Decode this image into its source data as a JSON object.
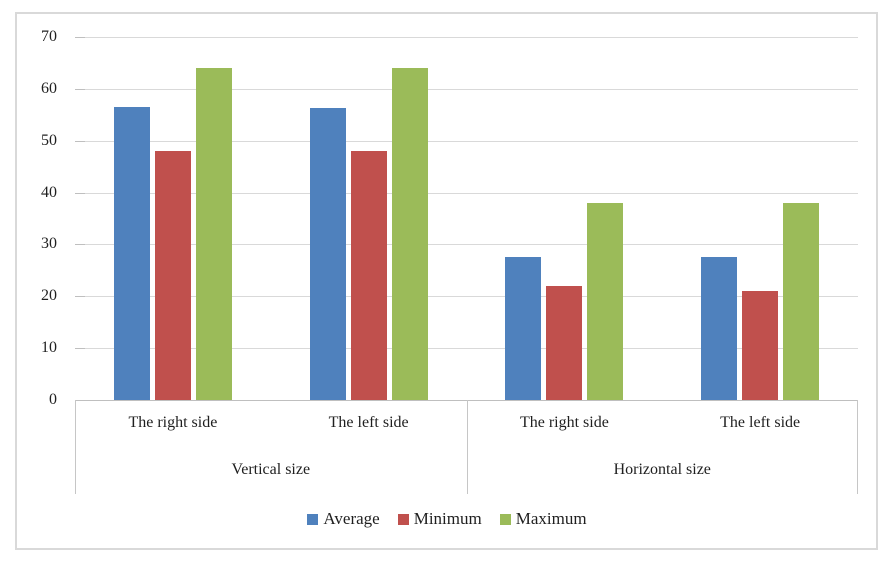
{
  "chart_data": {
    "type": "bar",
    "title": "",
    "categories": [
      "The right side",
      "The left side",
      "The right side",
      "The left side"
    ],
    "category_groups": [
      {
        "label": "Vertical size",
        "span": 2
      },
      {
        "label": "Horizontal size",
        "span": 2
      }
    ],
    "series": [
      {
        "name": "Average",
        "color": "#4F81BD",
        "values": [
          56.5,
          56.3,
          27.5,
          27.5
        ]
      },
      {
        "name": "Minimum",
        "color": "#C0504D",
        "values": [
          48,
          48,
          22,
          21
        ]
      },
      {
        "name": "Maximum",
        "color": "#9BBB59",
        "values": [
          64,
          64,
          38,
          38
        ]
      }
    ],
    "y_axis": {
      "min": 0,
      "max": 70,
      "step": 10,
      "tick_labels": [
        "0",
        "10",
        "20",
        "30",
        "40",
        "50",
        "60",
        "70"
      ]
    },
    "legend": {
      "position": "bottom",
      "entries": [
        "Average",
        "Minimum",
        "Maximum"
      ]
    },
    "grid": true,
    "colors": {
      "gridline": "#D9D9D9",
      "axis_line": "#BFBFBF",
      "chart_border": "#D9D9D9",
      "text": "#1F1F1F"
    }
  }
}
